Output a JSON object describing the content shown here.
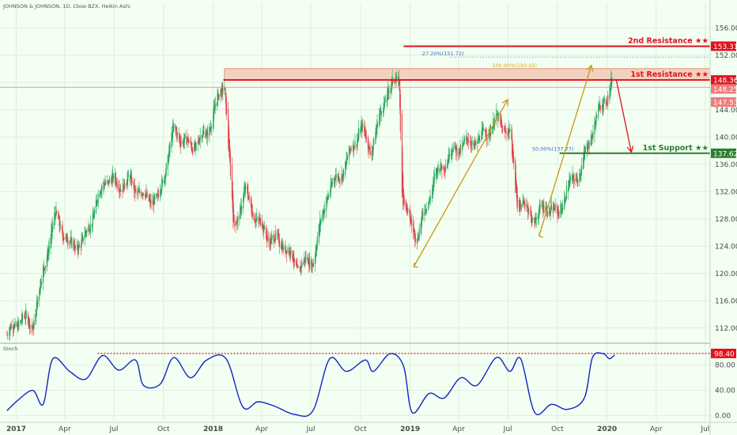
{
  "header": {
    "title": "JOHNSON & JOHNSON, 1D, Cboe BZX, Heikin Ashi"
  },
  "osc": {
    "label": "Stoch"
  },
  "colors": {
    "bg": "#f2fff2",
    "up": "#26a65b",
    "down": "#e0454b",
    "resistance": "#e0121c",
    "support": "#2e7d32",
    "arrow_up": "#c79a14",
    "arrow_down": "#e0121c",
    "zone": "#f4c9b5",
    "stoch": "#1126c4",
    "fib_text_orange": "#d9a400",
    "fib_text_blue": "#3a66c7"
  },
  "chart_data": [
    {
      "type": "candlestick",
      "title": "JOHNSON & JOHNSON, 1D, Cboe BZX, Heikin Ashi",
      "x_axis": {
        "type": "date",
        "tick_labels": [
          "2017",
          "Apr",
          "Jul",
          "Oct",
          "2018",
          "Apr",
          "Jul",
          "Oct",
          "2019",
          "Apr",
          "Jul",
          "Oct",
          "2020",
          "Apr",
          "Jul"
        ]
      },
      "y_axis": {
        "range": [
          110,
          158
        ],
        "ticks": [
          "112.00",
          "116.00",
          "120.00",
          "124.00",
          "128.00",
          "132.00",
          "136.00",
          "140.00",
          "144.00",
          "148.00",
          "152.00",
          "156.00"
        ]
      },
      "price_anchors": [
        {
          "date": "2016-12-15",
          "price": 111.0
        },
        {
          "date": "2017-01-10",
          "price": 113.5
        },
        {
          "date": "2017-02-01",
          "price": 112.5
        },
        {
          "date": "2017-03-01",
          "price": 124.0
        },
        {
          "date": "2017-03-15",
          "price": 128.5
        },
        {
          "date": "2017-04-10",
          "price": 124.0
        },
        {
          "date": "2017-05-05",
          "price": 124.5
        },
        {
          "date": "2017-06-15",
          "price": 134.0
        },
        {
          "date": "2017-07-10",
          "price": 133.0
        },
        {
          "date": "2017-08-01",
          "price": 133.5
        },
        {
          "date": "2017-08-20",
          "price": 131.5
        },
        {
          "date": "2017-09-20",
          "price": 130.5
        },
        {
          "date": "2017-10-20",
          "price": 141.0
        },
        {
          "date": "2017-11-20",
          "price": 138.5
        },
        {
          "date": "2017-12-20",
          "price": 140.5
        },
        {
          "date": "2018-01-22",
          "price": 148.3
        },
        {
          "date": "2018-02-08",
          "price": 126.5
        },
        {
          "date": "2018-03-01",
          "price": 132.0
        },
        {
          "date": "2018-03-25",
          "price": 127.5
        },
        {
          "date": "2018-04-18",
          "price": 125.0
        },
        {
          "date": "2018-05-10",
          "price": 124.5
        },
        {
          "date": "2018-06-05",
          "price": 121.0
        },
        {
          "date": "2018-07-05",
          "price": 122.0
        },
        {
          "date": "2018-08-01",
          "price": 132.0
        },
        {
          "date": "2018-09-01",
          "price": 135.5
        },
        {
          "date": "2018-10-01",
          "price": 141.5
        },
        {
          "date": "2018-10-20",
          "price": 138.0
        },
        {
          "date": "2018-11-20",
          "price": 147.0
        },
        {
          "date": "2018-12-12",
          "price": 148.5
        },
        {
          "date": "2018-12-17",
          "price": 132.0
        },
        {
          "date": "2018-12-28",
          "price": 128.0
        },
        {
          "date": "2019-01-15",
          "price": 125.5
        },
        {
          "date": "2019-02-15",
          "price": 134.0
        },
        {
          "date": "2019-03-15",
          "price": 137.5
        },
        {
          "date": "2019-04-10",
          "price": 139.0
        },
        {
          "date": "2019-05-10",
          "price": 139.5
        },
        {
          "date": "2019-06-10",
          "price": 142.5
        },
        {
          "date": "2019-07-05",
          "price": 140.5
        },
        {
          "date": "2019-07-18",
          "price": 131.0
        },
        {
          "date": "2019-08-20",
          "price": 128.0
        },
        {
          "date": "2019-09-10",
          "price": 130.0
        },
        {
          "date": "2019-10-01",
          "price": 128.5
        },
        {
          "date": "2019-10-20",
          "price": 132.5
        },
        {
          "date": "2019-11-15",
          "price": 135.5
        },
        {
          "date": "2019-12-10",
          "price": 142.5
        },
        {
          "date": "2019-12-31",
          "price": 146.0
        },
        {
          "date": "2020-01-10",
          "price": 148.3
        }
      ],
      "levels": [
        {
          "name": "2nd Resistance",
          "value": 153.31,
          "label": "2nd Resistance ★★",
          "tag": "153.31"
        },
        {
          "name": "1st Resistance",
          "value": 148.36,
          "label": "1st Resistance ★★",
          "tag": "148.36"
        },
        {
          "name": "1st Support",
          "value": 137.62,
          "label": "1st Support ★★",
          "tag": "137.62"
        }
      ],
      "extra_tags": [
        {
          "value": 148.25,
          "tag": "148.25"
        },
        {
          "value": 147.53,
          "tag": "147.53"
        }
      ],
      "zone": {
        "from": 148.36,
        "to": 150.02
      },
      "fib_labels": [
        {
          "text": "-27.20%(151.72)",
          "value": 151.72
        },
        {
          "text": "100.00%(150.02)",
          "value": 150.02
        },
        {
          "text": "50.00%(137.77)",
          "value": 137.77
        }
      ],
      "arrows": [
        {
          "from": {
            "date": "2019-01-08",
            "price": 121.0
          },
          "to": {
            "date": "2019-07-01",
            "price": 145.5
          }
        },
        {
          "from": {
            "date": "2019-08-28",
            "price": 125.5
          },
          "to": {
            "date": "2019-12-03",
            "price": 150.5
          }
        },
        {
          "from": {
            "date": "2020-01-18",
            "price": 148.4
          },
          "to": {
            "date": "2020-02-15",
            "price": 137.8
          }
        }
      ]
    },
    {
      "type": "line",
      "title": "Stoch",
      "y_axis": {
        "range": [
          -8,
          112
        ],
        "ticks": [
          "0.00",
          "40.00",
          "80.00"
        ]
      },
      "threshold": {
        "value": 98.4,
        "tag": "98.40"
      },
      "series": [
        {
          "points": [
            {
              "date": "2016-12-15",
              "value": 8
            },
            {
              "date": "2017-01-05",
              "value": 25
            },
            {
              "date": "2017-02-01",
              "value": 40
            },
            {
              "date": "2017-02-20",
              "value": 18
            },
            {
              "date": "2017-03-10",
              "value": 90
            },
            {
              "date": "2017-04-10",
              "value": 70
            },
            {
              "date": "2017-05-10",
              "value": 58
            },
            {
              "date": "2017-06-10",
              "value": 95
            },
            {
              "date": "2017-07-10",
              "value": 72
            },
            {
              "date": "2017-08-10",
              "value": 88
            },
            {
              "date": "2017-08-25",
              "value": 48
            },
            {
              "date": "2017-09-25",
              "value": 50
            },
            {
              "date": "2017-10-20",
              "value": 92
            },
            {
              "date": "2017-11-20",
              "value": 60
            },
            {
              "date": "2017-12-20",
              "value": 88
            },
            {
              "date": "2018-01-25",
              "value": 90
            },
            {
              "date": "2018-02-25",
              "value": 14
            },
            {
              "date": "2018-03-25",
              "value": 22
            },
            {
              "date": "2018-04-25",
              "value": 15
            },
            {
              "date": "2018-06-01",
              "value": 2
            },
            {
              "date": "2018-07-05",
              "value": 8
            },
            {
              "date": "2018-08-05",
              "value": 90
            },
            {
              "date": "2018-09-05",
              "value": 70
            },
            {
              "date": "2018-10-10",
              "value": 88
            },
            {
              "date": "2018-10-25",
              "value": 70
            },
            {
              "date": "2018-11-25",
              "value": 98
            },
            {
              "date": "2018-12-20",
              "value": 78
            },
            {
              "date": "2019-01-05",
              "value": 5
            },
            {
              "date": "2019-02-05",
              "value": 35
            },
            {
              "date": "2019-03-05",
              "value": 28
            },
            {
              "date": "2019-04-05",
              "value": 60
            },
            {
              "date": "2019-05-05",
              "value": 48
            },
            {
              "date": "2019-06-10",
              "value": 92
            },
            {
              "date": "2019-07-05",
              "value": 70
            },
            {
              "date": "2019-07-25",
              "value": 90
            },
            {
              "date": "2019-08-20",
              "value": 5
            },
            {
              "date": "2019-09-20",
              "value": 18
            },
            {
              "date": "2019-10-20",
              "value": 10
            },
            {
              "date": "2019-11-20",
              "value": 28
            },
            {
              "date": "2019-12-05",
              "value": 92
            },
            {
              "date": "2019-12-25",
              "value": 98
            },
            {
              "date": "2020-01-05",
              "value": 90
            },
            {
              "date": "2020-01-15",
              "value": 96
            }
          ]
        }
      ]
    }
  ]
}
